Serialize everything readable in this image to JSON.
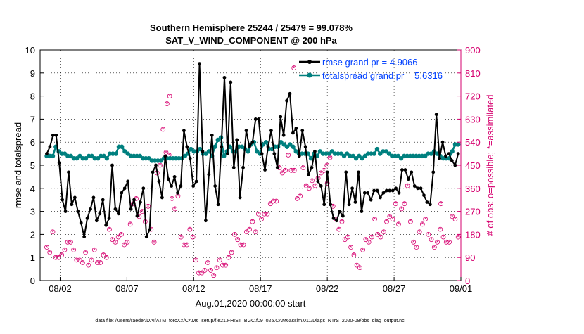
{
  "chart_data": {
    "type": "line",
    "title_line1": "Southern Hemisphere 25244 / 25479 = 99.078%",
    "title_line2": "SAT_V_WIND_COMPONENT @ 200 hPa",
    "xlabel": "Aug.01,2020 00:00:00 start",
    "ylabel_left": "rmse and totalspread",
    "ylabel_right": "# of obs: o=possible; *=assimilated",
    "footer": "data file: /Users/raeder/DAI/ATM_forcXX/CAM6_setup/f.e21.FHIST_BGC.f09_025.CAM6assim.011/Diags_NTrS_2020-08/obs_diag_output.nc",
    "xlim": [
      0.5,
      32
    ],
    "ylim_left": [
      0,
      10
    ],
    "ylim_right": [
      0,
      900
    ],
    "x_ticks": [
      {
        "value": 2,
        "label": "08/02"
      },
      {
        "value": 7,
        "label": "08/07"
      },
      {
        "value": 12,
        "label": "08/12"
      },
      {
        "value": 17,
        "label": "08/17"
      },
      {
        "value": 22,
        "label": "08/22"
      },
      {
        "value": 27,
        "label": "08/27"
      },
      {
        "value": 32,
        "label": "09/01"
      }
    ],
    "y_ticks_left": [
      "0",
      "1",
      "2",
      "3",
      "4",
      "5",
      "6",
      "7",
      "8",
      "9",
      "10"
    ],
    "y_ticks_right": [
      "0",
      "90",
      "180",
      "270",
      "360",
      "450",
      "540",
      "630",
      "720",
      "810",
      "900"
    ],
    "grid": true,
    "legend_position": "top-right",
    "colors": {
      "rmse": "#000000",
      "spread": "#00807f",
      "obs": "#d6006f",
      "legend_text": "#0040ff"
    },
    "series": [
      {
        "name": "rmse grand pr = 4.9066",
        "values": [
          5.5,
          5.8,
          6.3,
          6.3,
          5.1,
          3.5,
          3.0,
          4.7,
          3.3,
          3.6,
          3.0,
          2.5,
          1.9,
          2.7,
          3.1,
          3.6,
          2.6,
          2.9,
          3.5,
          2.4,
          2.7,
          5.0,
          3.1,
          2.9,
          3.8,
          4.0,
          4.3,
          3.1,
          3.5,
          2.8,
          3.4,
          4.0,
          1.9,
          2.2,
          4.7,
          5.0,
          4.3,
          3.6,
          5.4,
          4.4,
          4.1,
          4.5,
          3.8,
          4.1,
          6.5,
          5.8,
          5.3,
          4.1,
          4.3,
          9.4,
          5.6,
          2.6,
          4.6,
          6.3,
          4.1,
          3.3,
          5.8,
          8.8,
          5.5,
          8.6,
          4.9,
          6.1,
          3.6,
          4.9,
          6.5,
          5.8,
          6.0,
          7.0,
          7.0,
          5.5,
          4.8,
          5.8,
          6.5,
          5.5,
          4.9,
          7.1,
          6.3,
          7.8,
          8.1,
          6.4,
          6.6,
          5.4,
          6.5,
          5.8,
          4.6,
          4.9,
          5.6,
          4.3,
          4.1,
          3.3,
          4.7,
          3.3,
          2.7,
          2.6,
          3.0,
          2.8,
          4.7,
          3.3,
          4.0,
          3.4,
          4.7,
          3.0,
          3.8,
          3.8,
          3.5,
          3.9,
          3.9,
          3.6,
          3.8,
          3.9,
          3.9,
          3.9,
          4.0,
          3.8,
          4.8,
          4.8,
          4.4,
          4.7,
          4.1,
          4.0,
          4.0,
          3.7,
          3.4,
          3.3,
          4.7,
          7.2,
          5.3,
          6.0,
          5.4,
          5.5,
          5.2,
          5.0,
          5.5
        ],
        "points_shown_every": 1
      },
      {
        "name": "totalspread grand pr = 5.6316",
        "values": [
          5.4,
          5.4,
          5.4,
          5.8,
          5.6,
          5.5,
          5.5,
          5.4,
          5.4,
          5.3,
          5.3,
          5.4,
          5.3,
          5.3,
          5.4,
          5.4,
          5.3,
          5.3,
          5.4,
          5.4,
          5.3,
          5.5,
          5.5,
          5.5,
          5.8,
          5.8,
          5.6,
          5.5,
          5.4,
          5.4,
          5.4,
          5.4,
          5.3,
          5.3,
          5.3,
          5.2,
          5.2,
          5.2,
          5.2,
          5.3,
          5.3,
          5.3,
          5.3,
          5.3,
          5.3,
          5.3,
          5.4,
          5.5,
          5.7,
          5.6,
          5.6,
          5.7,
          5.5,
          5.5,
          5.6,
          5.4,
          5.8,
          6.1,
          6.2,
          5.4,
          5.6,
          5.8,
          5.6,
          5.6,
          5.8,
          5.8,
          5.7,
          5.6,
          5.9,
          6.0,
          5.6,
          5.5,
          5.9,
          6.0,
          5.7,
          5.7,
          5.8,
          5.8,
          6.0,
          5.9,
          5.8,
          5.9,
          5.8,
          5.6,
          5.5,
          5.5,
          5.5,
          5.5,
          5.3,
          5.5,
          5.4,
          5.6,
          5.5,
          5.5,
          5.5,
          5.6,
          5.5,
          5.5,
          5.5,
          5.4,
          5.5,
          5.4,
          5.4,
          5.3,
          5.4,
          5.3,
          5.4,
          5.5,
          5.5,
          5.5,
          5.7,
          5.5,
          5.6,
          5.6,
          5.5,
          5.4,
          5.4,
          5.4,
          5.3,
          5.4,
          5.4,
          5.4,
          5.4,
          5.4,
          5.4,
          5.4,
          5.4,
          5.5,
          5.5,
          5.6,
          5.5,
          5.4,
          5.3,
          5.3,
          5.3,
          5.6,
          5.9,
          5.9
        ]
      }
    ],
    "obs_counts_assimilated": [
      130,
      110,
      190,
      90,
      90,
      100,
      120,
      150,
      150,
      120,
      80,
      80,
      70,
      110,
      60,
      80,
      120,
      70,
      70,
      100,
      90,
      200,
      160,
      150,
      170,
      180,
      140,
      150,
      220,
      300,
      320,
      250,
      270,
      230,
      290,
      200,
      150,
      420,
      450,
      590,
      500,
      490,
      320,
      280,
      330,
      170,
      140,
      140,
      200,
      170,
      80,
      30,
      30,
      40,
      70,
      40,
      20,
      50,
      80,
      60,
      60,
      90,
      110,
      180,
      160,
      140,
      140,
      190,
      200,
      230,
      190,
      260,
      240,
      260,
      260,
      300,
      310,
      310,
      440,
      420,
      430,
      490,
      430,
      430,
      320,
      330,
      440,
      370,
      360,
      390,
      370,
      400,
      420,
      430,
      450,
      480,
      290,
      240,
      200,
      230,
      160,
      170,
      130,
      100,
      60,
      50,
      120,
      160,
      150,
      170,
      240,
      180,
      170,
      190,
      230,
      250,
      240,
      300,
      220,
      280,
      300,
      370,
      230,
      150,
      130,
      190,
      220,
      240,
      180,
      160,
      130,
      150,
      200,
      170,
      150,
      150,
      250,
      240,
      170
    ],
    "obs_outliers_possible": [
      {
        "x": 10.0,
        "y": 690
      },
      {
        "x": 10.2,
        "y": 720
      },
      {
        "x": 19.5,
        "y": 830
      },
      {
        "x": 22.0,
        "y": 380
      },
      {
        "x": 30.5,
        "y": 300
      }
    ]
  },
  "legend": {
    "rmse_label": "rmse grand pr = 4.9066",
    "spread_label": "totalspread grand pr = 5.6316"
  }
}
